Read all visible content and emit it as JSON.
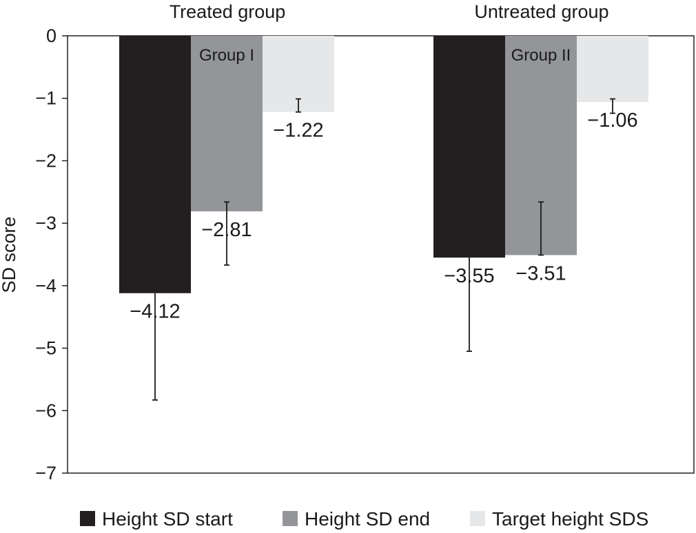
{
  "chart_data": {
    "type": "bar",
    "ylabel": "SD score",
    "ylim": [
      -7,
      0
    ],
    "yticks": [
      0,
      -1,
      -2,
      -3,
      -4,
      -5,
      -6,
      -7
    ],
    "ytick_labels": [
      "0",
      "−1",
      "−2",
      "−3",
      "−4",
      "−5",
      "−6",
      "−7"
    ],
    "grid": false,
    "legend_position": "bottom",
    "groups": [
      {
        "header": "Treated group",
        "label": "Group I",
        "values": [
          -4.12,
          -2.81,
          -1.22
        ],
        "value_labels": [
          "−4.12",
          "−2.81",
          "−1.22"
        ],
        "error_low": [
          -5.83,
          -3.67,
          -1.22
        ],
        "error_high": [
          -4.12,
          -2.66,
          -1.01
        ]
      },
      {
        "header": "Untreated group",
        "label": "Group II",
        "values": [
          -3.55,
          -3.51,
          -1.06
        ],
        "value_labels": [
          "−3.55",
          "−3.51",
          "−1.06"
        ],
        "error_low": [
          -5.05,
          -3.51,
          -1.24
        ],
        "error_high": [
          -3.55,
          -2.66,
          -1.01
        ]
      }
    ],
    "series": [
      {
        "name": "Height SD start",
        "color": "#231f20"
      },
      {
        "name": "Height SD end",
        "color": "#939598"
      },
      {
        "name": "Target height SDS",
        "color": "#e6e7e8"
      }
    ]
  }
}
